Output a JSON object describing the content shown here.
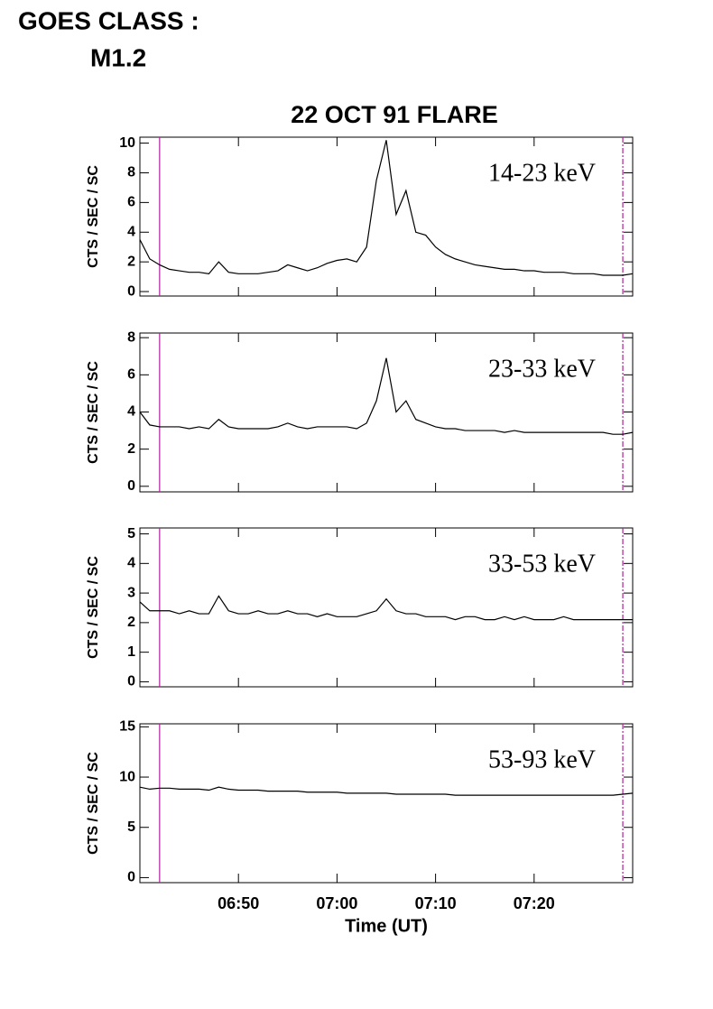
{
  "header": {
    "title": "GOES CLASS :",
    "subtitle": "M1.2"
  },
  "chart_data": [
    {
      "type": "line",
      "title": "22 OCT 91 FLARE",
      "annotation": "14-23 keV",
      "y_label": "CTS / SEC / SC",
      "xlim": [
        "06:40",
        "07:30"
      ],
      "ylim": [
        -0.3,
        10.4
      ],
      "yticks": [
        0,
        2,
        4,
        6,
        8,
        10
      ],
      "markers": [
        "06:42",
        "07:29"
      ],
      "marker_color": "#b020a0",
      "x": [
        "06:40",
        "06:41",
        "06:42",
        "06:43",
        "06:44",
        "06:45",
        "06:46",
        "06:47",
        "06:48",
        "06:49",
        "06:50",
        "06:51",
        "06:52",
        "06:53",
        "06:54",
        "06:55",
        "06:56",
        "06:57",
        "06:58",
        "06:59",
        "07:00",
        "07:01",
        "07:02",
        "07:03",
        "07:04",
        "07:05",
        "07:06",
        "07:07",
        "07:08",
        "07:09",
        "07:10",
        "07:11",
        "07:12",
        "07:13",
        "07:14",
        "07:15",
        "07:16",
        "07:17",
        "07:18",
        "07:19",
        "07:20",
        "07:21",
        "07:22",
        "07:23",
        "07:24",
        "07:25",
        "07:26",
        "07:27",
        "07:28",
        "07:29",
        "07:30"
      ],
      "series": [
        {
          "color": "#000000",
          "values": [
            3.5,
            2.2,
            1.8,
            1.5,
            1.4,
            1.3,
            1.3,
            1.2,
            2.0,
            1.3,
            1.2,
            1.2,
            1.2,
            1.3,
            1.4,
            1.8,
            1.6,
            1.4,
            1.6,
            1.9,
            2.1,
            2.2,
            2.0,
            3.0,
            7.5,
            10.2,
            5.2,
            6.8,
            4.0,
            3.8,
            3.0,
            2.5,
            2.2,
            2.0,
            1.8,
            1.7,
            1.6,
            1.5,
            1.5,
            1.4,
            1.4,
            1.3,
            1.3,
            1.3,
            1.2,
            1.2,
            1.2,
            1.1,
            1.1,
            1.1,
            1.2
          ]
        }
      ]
    },
    {
      "type": "line",
      "annotation": "23-33 keV",
      "y_label": "CTS / SEC / SC",
      "xlim": [
        "06:40",
        "07:30"
      ],
      "ylim": [
        -0.3,
        8.25
      ],
      "yticks": [
        0,
        2,
        4,
        6,
        8
      ],
      "markers": [
        "06:42",
        "07:29"
      ],
      "marker_color": "#b020a0",
      "x": [
        "06:40",
        "06:41",
        "06:42",
        "06:43",
        "06:44",
        "06:45",
        "06:46",
        "06:47",
        "06:48",
        "06:49",
        "06:50",
        "06:51",
        "06:52",
        "06:53",
        "06:54",
        "06:55",
        "06:56",
        "06:57",
        "06:58",
        "06:59",
        "07:00",
        "07:01",
        "07:02",
        "07:03",
        "07:04",
        "07:05",
        "07:06",
        "07:07",
        "07:08",
        "07:09",
        "07:10",
        "07:11",
        "07:12",
        "07:13",
        "07:14",
        "07:15",
        "07:16",
        "07:17",
        "07:18",
        "07:19",
        "07:20",
        "07:21",
        "07:22",
        "07:23",
        "07:24",
        "07:25",
        "07:26",
        "07:27",
        "07:28",
        "07:29",
        "07:30"
      ],
      "series": [
        {
          "color": "#000000",
          "values": [
            4.0,
            3.3,
            3.2,
            3.2,
            3.2,
            3.1,
            3.2,
            3.1,
            3.6,
            3.2,
            3.1,
            3.1,
            3.1,
            3.1,
            3.2,
            3.4,
            3.2,
            3.1,
            3.2,
            3.2,
            3.2,
            3.2,
            3.1,
            3.4,
            4.6,
            6.9,
            4.0,
            4.6,
            3.6,
            3.4,
            3.2,
            3.1,
            3.1,
            3.0,
            3.0,
            3.0,
            3.0,
            2.9,
            3.0,
            2.9,
            2.9,
            2.9,
            2.9,
            2.9,
            2.9,
            2.9,
            2.9,
            2.9,
            2.8,
            2.8,
            2.9
          ]
        }
      ]
    },
    {
      "type": "line",
      "annotation": "33-53 keV",
      "y_label": "CTS / SEC / SC",
      "xlim": [
        "06:40",
        "07:30"
      ],
      "ylim": [
        -0.17,
        5.2
      ],
      "yticks": [
        0,
        1,
        2,
        3,
        4,
        5
      ],
      "markers": [
        "06:42",
        "07:29"
      ],
      "marker_color": "#b020a0",
      "x": [
        "06:40",
        "06:41",
        "06:42",
        "06:43",
        "06:44",
        "06:45",
        "06:46",
        "06:47",
        "06:48",
        "06:49",
        "06:50",
        "06:51",
        "06:52",
        "06:53",
        "06:54",
        "06:55",
        "06:56",
        "06:57",
        "06:58",
        "06:59",
        "07:00",
        "07:01",
        "07:02",
        "07:03",
        "07:04",
        "07:05",
        "07:06",
        "07:07",
        "07:08",
        "07:09",
        "07:10",
        "07:11",
        "07:12",
        "07:13",
        "07:14",
        "07:15",
        "07:16",
        "07:17",
        "07:18",
        "07:19",
        "07:20",
        "07:21",
        "07:22",
        "07:23",
        "07:24",
        "07:25",
        "07:26",
        "07:27",
        "07:28",
        "07:29",
        "07:30"
      ],
      "series": [
        {
          "color": "#000000",
          "values": [
            2.7,
            2.4,
            2.4,
            2.4,
            2.3,
            2.4,
            2.3,
            2.3,
            2.9,
            2.4,
            2.3,
            2.3,
            2.4,
            2.3,
            2.3,
            2.4,
            2.3,
            2.3,
            2.2,
            2.3,
            2.2,
            2.2,
            2.2,
            2.3,
            2.4,
            2.8,
            2.4,
            2.3,
            2.3,
            2.2,
            2.2,
            2.2,
            2.1,
            2.2,
            2.2,
            2.1,
            2.1,
            2.2,
            2.1,
            2.2,
            2.1,
            2.1,
            2.1,
            2.2,
            2.1,
            2.1,
            2.1,
            2.1,
            2.1,
            2.1,
            2.1
          ]
        }
      ]
    },
    {
      "type": "line",
      "annotation": "53-93 keV",
      "y_label": "CTS / SEC / SC",
      "x_label": "Time (UT)",
      "xlim": [
        "06:40",
        "07:30"
      ],
      "ylim": [
        -0.5,
        15.3
      ],
      "yticks": [
        0,
        5,
        10,
        15
      ],
      "xticks": [
        "06:50",
        "07:00",
        "07:10",
        "07:20"
      ],
      "markers": [
        "06:42",
        "07:29"
      ],
      "marker_color": "#b020a0",
      "x": [
        "06:40",
        "06:41",
        "06:42",
        "06:43",
        "06:44",
        "06:45",
        "06:46",
        "06:47",
        "06:48",
        "06:49",
        "06:50",
        "06:51",
        "06:52",
        "06:53",
        "06:54",
        "06:55",
        "06:56",
        "06:57",
        "06:58",
        "06:59",
        "07:00",
        "07:01",
        "07:02",
        "07:03",
        "07:04",
        "07:05",
        "07:06",
        "07:07",
        "07:08",
        "07:09",
        "07:10",
        "07:11",
        "07:12",
        "07:13",
        "07:14",
        "07:15",
        "07:16",
        "07:17",
        "07:18",
        "07:19",
        "07:20",
        "07:21",
        "07:22",
        "07:23",
        "07:24",
        "07:25",
        "07:26",
        "07:27",
        "07:28",
        "07:29",
        "07:30"
      ],
      "series": [
        {
          "color": "#000000",
          "values": [
            9.0,
            8.8,
            8.9,
            8.9,
            8.8,
            8.8,
            8.8,
            8.7,
            9.0,
            8.8,
            8.7,
            8.7,
            8.7,
            8.6,
            8.6,
            8.6,
            8.6,
            8.5,
            8.5,
            8.5,
            8.5,
            8.4,
            8.4,
            8.4,
            8.4,
            8.4,
            8.3,
            8.3,
            8.3,
            8.3,
            8.3,
            8.3,
            8.2,
            8.2,
            8.2,
            8.2,
            8.2,
            8.2,
            8.2,
            8.2,
            8.2,
            8.2,
            8.2,
            8.2,
            8.2,
            8.2,
            8.2,
            8.2,
            8.2,
            8.3,
            8.4
          ]
        }
      ]
    }
  ]
}
